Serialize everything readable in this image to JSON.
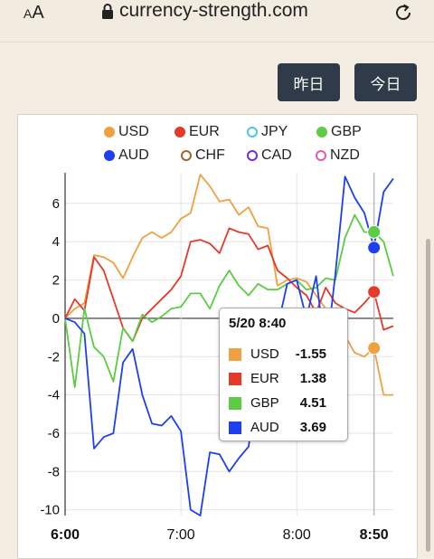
{
  "browser": {
    "text_size_label": "AA",
    "url": "currency-strength.com"
  },
  "buttons": {
    "yesterday": "昨日",
    "today": "今日"
  },
  "legend": [
    {
      "name": "USD",
      "color": "#f0a040",
      "style": "filled"
    },
    {
      "name": "EUR",
      "color": "#e53a2a",
      "style": "filled"
    },
    {
      "name": "JPY",
      "color": "#4fc6e6",
      "style": "ring"
    },
    {
      "name": "GBP",
      "color": "#5ccc44",
      "style": "filled"
    },
    {
      "name": "AUD",
      "color": "#1e3ff0",
      "style": "filled"
    },
    {
      "name": "CHF",
      "color": "#a0662a",
      "style": "ring"
    },
    {
      "name": "CAD",
      "color": "#7a2ad8",
      "style": "ring"
    },
    {
      "name": "NZD",
      "color": "#e25aa8",
      "style": "ring"
    }
  ],
  "tooltip": {
    "title": "5/20 8:40",
    "rows": [
      {
        "name": "USD",
        "value": "-1.55",
        "color": "#f0a040"
      },
      {
        "name": "EUR",
        "value": "1.38",
        "color": "#e53a2a"
      },
      {
        "name": "GBP",
        "value": "4.51",
        "color": "#5ccc44"
      },
      {
        "name": "AUD",
        "value": "3.69",
        "color": "#1e3ff0"
      }
    ]
  },
  "chart_data": {
    "type": "line",
    "x_ticks": [
      "6:00",
      "7:00",
      "8:00",
      "8:50"
    ],
    "y_ticks": [
      6,
      4,
      2,
      0,
      -2,
      -4,
      -6,
      -8,
      -10
    ],
    "ylim": [
      -10.3,
      7.6
    ],
    "x_range_minutes": [
      0,
      170
    ],
    "grid": true,
    "legend_position": "top",
    "highlight_x_minutes": 160,
    "series": [
      {
        "name": "USD",
        "color": "#f0a040",
        "values": [
          [
            0,
            0
          ],
          [
            5,
            0.5
          ],
          [
            10,
            0.8
          ],
          [
            15,
            3.3
          ],
          [
            20,
            3.2
          ],
          [
            25,
            2.9
          ],
          [
            30,
            2.1
          ],
          [
            35,
            3.2
          ],
          [
            40,
            4.2
          ],
          [
            45,
            4.5
          ],
          [
            50,
            4.2
          ],
          [
            55,
            4.5
          ],
          [
            60,
            5.2
          ],
          [
            65,
            5.5
          ],
          [
            70,
            7.5
          ],
          [
            75,
            6.9
          ],
          [
            80,
            6.1
          ],
          [
            85,
            6.2
          ],
          [
            90,
            5.4
          ],
          [
            95,
            5.8
          ],
          [
            100,
            4.8
          ],
          [
            105,
            4.7
          ],
          [
            110,
            1.7
          ],
          [
            115,
            2.0
          ],
          [
            120,
            2.1
          ],
          [
            125,
            1.9
          ],
          [
            130,
            1.2
          ],
          [
            135,
            0.5
          ],
          [
            140,
            -0.3
          ],
          [
            145,
            -0.9
          ],
          [
            150,
            -1.8
          ],
          [
            155,
            -2.0
          ],
          [
            160,
            -1.55
          ],
          [
            165,
            -4.0
          ],
          [
            170,
            -4.0
          ]
        ]
      },
      {
        "name": "EUR",
        "color": "#e53a2a",
        "values": [
          [
            0,
            0
          ],
          [
            5,
            1.0
          ],
          [
            10,
            0.4
          ],
          [
            15,
            3.2
          ],
          [
            20,
            2.5
          ],
          [
            25,
            1.0
          ],
          [
            30,
            -0.5
          ],
          [
            35,
            -1.2
          ],
          [
            40,
            0
          ],
          [
            45,
            0.5
          ],
          [
            50,
            1.0
          ],
          [
            55,
            1.5
          ],
          [
            60,
            2.2
          ],
          [
            65,
            4.0
          ],
          [
            70,
            4.1
          ],
          [
            75,
            3.9
          ],
          [
            80,
            3.4
          ],
          [
            85,
            4.7
          ],
          [
            90,
            4.5
          ],
          [
            95,
            4.4
          ],
          [
            100,
            3.6
          ],
          [
            105,
            3.8
          ],
          [
            110,
            2.5
          ],
          [
            115,
            2.1
          ],
          [
            120,
            1.6
          ],
          [
            125,
            1.2
          ],
          [
            130,
            0.3
          ],
          [
            135,
            1.6
          ],
          [
            140,
            0.8
          ],
          [
            145,
            0.5
          ],
          [
            150,
            0.3
          ],
          [
            155,
            0.8
          ],
          [
            160,
            1.38
          ],
          [
            165,
            -0.6
          ],
          [
            170,
            -0.4
          ]
        ]
      },
      {
        "name": "GBP",
        "color": "#5ccc44",
        "values": [
          [
            0,
            0
          ],
          [
            5,
            -3.6
          ],
          [
            10,
            0.5
          ],
          [
            15,
            -1.5
          ],
          [
            20,
            -2.0
          ],
          [
            25,
            -3.3
          ],
          [
            30,
            -0.5
          ],
          [
            35,
            -1.2
          ],
          [
            40,
            0.2
          ],
          [
            45,
            -0.2
          ],
          [
            50,
            0.1
          ],
          [
            55,
            0.5
          ],
          [
            60,
            0.6
          ],
          [
            65,
            1.3
          ],
          [
            70,
            1.3
          ],
          [
            75,
            0.5
          ],
          [
            80,
            1.7
          ],
          [
            85,
            2.5
          ],
          [
            90,
            1.7
          ],
          [
            95,
            1.2
          ],
          [
            100,
            1.8
          ],
          [
            105,
            1.5
          ],
          [
            110,
            1.5
          ],
          [
            115,
            1.8
          ],
          [
            120,
            2.0
          ],
          [
            125,
            1.5
          ],
          [
            130,
            1.6
          ],
          [
            135,
            2.1
          ],
          [
            140,
            2.0
          ],
          [
            145,
            4.2
          ],
          [
            150,
            5.4
          ],
          [
            155,
            4.5
          ],
          [
            160,
            4.51
          ],
          [
            165,
            4.0
          ],
          [
            170,
            2.2
          ]
        ]
      },
      {
        "name": "AUD",
        "color": "#1e3ff0",
        "values": [
          [
            0,
            0
          ],
          [
            5,
            -0.2
          ],
          [
            10,
            -0.8
          ],
          [
            15,
            -6.8
          ],
          [
            20,
            -6.2
          ],
          [
            25,
            -6.0
          ],
          [
            30,
            -2.3
          ],
          [
            35,
            -1.6
          ],
          [
            40,
            -4.0
          ],
          [
            45,
            -5.5
          ],
          [
            50,
            -5.6
          ],
          [
            55,
            -5.1
          ],
          [
            60,
            -5.9
          ],
          [
            65,
            -10.0
          ],
          [
            70,
            -10.3
          ],
          [
            75,
            -7.0
          ],
          [
            80,
            -7.1
          ],
          [
            85,
            -8.0
          ],
          [
            90,
            -7.3
          ],
          [
            95,
            -6.7
          ],
          [
            100,
            -3.6
          ],
          [
            105,
            -3.3
          ],
          [
            110,
            -0.5
          ],
          [
            115,
            1.8
          ],
          [
            120,
            2.0
          ],
          [
            125,
            0.0
          ],
          [
            130,
            2.2
          ],
          [
            135,
            -2.0
          ],
          [
            140,
            2.3
          ],
          [
            145,
            7.4
          ],
          [
            150,
            6.3
          ],
          [
            155,
            5.5
          ],
          [
            160,
            3.69
          ],
          [
            165,
            6.6
          ],
          [
            170,
            7.3
          ]
        ]
      }
    ]
  }
}
